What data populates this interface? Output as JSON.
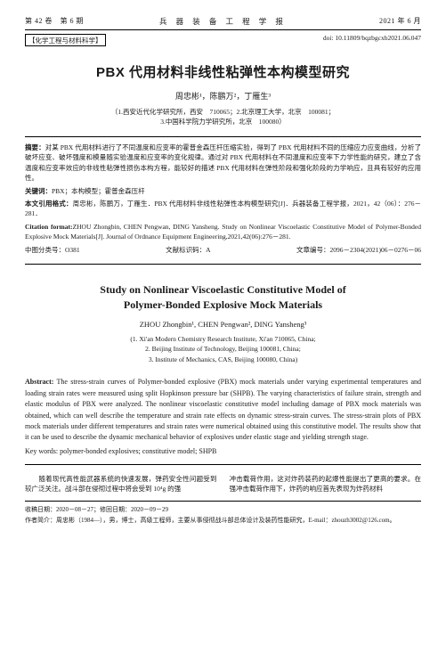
{
  "header": {
    "left": "第 42 卷　第 6 期",
    "center": "兵 器 装 备 工 程 学 报",
    "right": "2021 年 6 月"
  },
  "sub": {
    "left": "【化学工程与材料科学】",
    "right": "doi: 10.11809/bqzbgcxb2021.06.047"
  },
  "title_cn": "PBX 代用材料非线性粘弹性本构模型研究",
  "authors_cn": "周忠彬¹，陈鹏万²，丁雁生³",
  "affil_cn": "（1.西安近代化学研究所，西安　710065；2.北京理工大学，北京　100081；\n3.中国科学院力学研究所，北京　100080）",
  "abstract_cn_label": "摘要：",
  "abstract_cn": "对某 PBX 代用材料进行了不同温度和应变率的霍普金森压杆压缩实验，得到了 PBX 代用材料不同的压缩应力应变曲线，分析了破坏应变、破坏强度和模量随实验温度和应变率的变化规律。通过对 PBX 代用材料在不同温度和应变率下力学性能的研究，建立了含温度和应变率效应的非线性粘弹性损伤本构方程，能较好的描述 PBX 代用材料在弹性阶段和强化阶段的力学响应，且具有较好的应用性。",
  "keywords_cn_label": "关键词：",
  "keywords_cn": "PBX；本构模型；霍普金森压杆",
  "cite_cn_label": "本文引用格式：",
  "cite_cn": "周忠彬，陈鹏万，丁雁生．PBX 代用材料非线性粘弹性本构模型研究[J]．兵器装备工程学报，2021，42（06）：276－281．",
  "cite_en_label": "Citation format:",
  "cite_en": "ZHOU Zhongbin, CHEN Pengwan, DING Yansheng. Study on Nonlinear Viscoelastic Constitutive Model of Polymer-Bonded Explosive Mock Materials[J]. Journal of Ordnance Equipment Engineering,2021,42(06):276－281.",
  "classrow": {
    "clc": "中图分类号：O381",
    "doccode": "文献标识码：A",
    "artno": "文章编号：2096－2304(2021)06－0276－06"
  },
  "title_en": "Study on Nonlinear Viscoelastic Constitutive Model of\nPolymer-Bonded Explosive Mock Materials",
  "authors_en": "ZHOU Zhongbin¹, CHEN Pengwan², DING Yansheng³",
  "affil_en": "(1. Xi'an Modern Chemistry Research Institute, Xi'an 710065, China;\n2. Beijing Institute of Technology, Beijing 100081, China;\n3. Institute of Mechanics, CAS, Beijing 100080, China)",
  "abstract_en_label": "Abstract:",
  "abstract_en": " The stress-strain curves of Polymer-bonded explosive (PBX) mock materials under varying experimental temperatures and loading strain rates were measured using split Hopkinson pressure bar (SHPB). The varying characteristics of failure strain, strength and elastic modulus of PBX were analyzed. The nonlinear viscoelastic constitutive model including damage of PBX mock materials was obtained, which can well describe the temperature and strain rate effects on dynamic stress-strain curves. The stress-strain plots of PBX mock materials under different temperatures and strain rates were numerical obtained using this constitutive model. The results show that it can be used to describe the dynamic mechanical behavior of explosives under elastic stage and yielding strength stage.",
  "keywords_en_label": "Key words:",
  "keywords_en": " polymer-bonded explosives; constitutive model; SHPB",
  "maincol_left": "　　随着现代高性能武器系统的快速发展，弹药安全性问题受到较广泛关注。战斗部在侵彻过程中将会受到 10⁴g 的强",
  "maincol_right": "冲击载荷作用，这对炸药装药的起爆性能提出了更高的要求。在强冲击载荷作用下，炸药的响应首先表现为炸药材料",
  "footer": {
    "recv": "收稿日期：2020－08－27；修回日期：2020－09－29",
    "author": "作者简介：周忠彬（1984—），男，博士，高级工程师，主要从事侵彻战斗部总体设计及装药性能研究，E-mail：zhouzh3002@126.com。"
  }
}
